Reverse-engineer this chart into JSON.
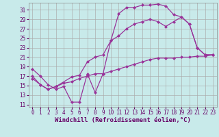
{
  "xlabel": "Windchill (Refroidissement éolien,°C)",
  "bg_color": "#c8eaea",
  "line_color": "#993399",
  "grid_color": "#aaaaaa",
  "xlim": [
    -0.5,
    23.5
  ],
  "ylim": [
    10.5,
    32.5
  ],
  "yticks": [
    11,
    13,
    15,
    17,
    19,
    21,
    23,
    25,
    27,
    29,
    31
  ],
  "xticks": [
    0,
    1,
    2,
    3,
    4,
    5,
    6,
    7,
    8,
    9,
    10,
    11,
    12,
    13,
    14,
    15,
    16,
    17,
    18,
    19,
    20,
    21,
    22,
    23
  ],
  "curve1_x": [
    0,
    1,
    2,
    3,
    4,
    5,
    6,
    7,
    8,
    9,
    10,
    11,
    12,
    13,
    14,
    15,
    16,
    17,
    18,
    19,
    20,
    21,
    22,
    23
  ],
  "curve1_y": [
    18.5,
    17.0,
    15.2,
    14.2,
    14.8,
    11.5,
    11.5,
    17.5,
    13.5,
    17.5,
    24.5,
    30.2,
    31.5,
    31.5,
    32.0,
    32.0,
    32.2,
    31.8,
    30.0,
    29.5,
    28.0,
    23.0,
    21.5,
    21.5
  ],
  "curve2_x": [
    0,
    1,
    2,
    3,
    5,
    6,
    7,
    8,
    9,
    10,
    11,
    12,
    13,
    14,
    15,
    16,
    17,
    18,
    19,
    20,
    21,
    22,
    23
  ],
  "curve2_y": [
    17.0,
    15.2,
    14.2,
    14.8,
    16.8,
    17.2,
    20.0,
    21.0,
    21.5,
    24.5,
    25.5,
    27.0,
    28.0,
    28.5,
    29.0,
    28.5,
    27.5,
    28.5,
    29.5,
    28.0,
    23.0,
    21.5,
    21.5
  ],
  "curve3_x": [
    0,
    1,
    2,
    3,
    4,
    5,
    6,
    7,
    8,
    9,
    10,
    11,
    12,
    13,
    14,
    15,
    16,
    17,
    18,
    19,
    20,
    21,
    22,
    23
  ],
  "curve3_y": [
    16.5,
    15.2,
    14.2,
    14.8,
    15.5,
    15.8,
    16.5,
    17.0,
    17.5,
    17.5,
    18.0,
    18.5,
    19.0,
    19.5,
    20.0,
    20.5,
    20.8,
    20.8,
    20.8,
    21.0,
    21.0,
    21.2,
    21.2,
    21.5
  ],
  "marker": "D",
  "markersize": 2.0,
  "linewidth": 0.9,
  "xlabel_fontsize": 6.5,
  "tick_fontsize": 5.5
}
